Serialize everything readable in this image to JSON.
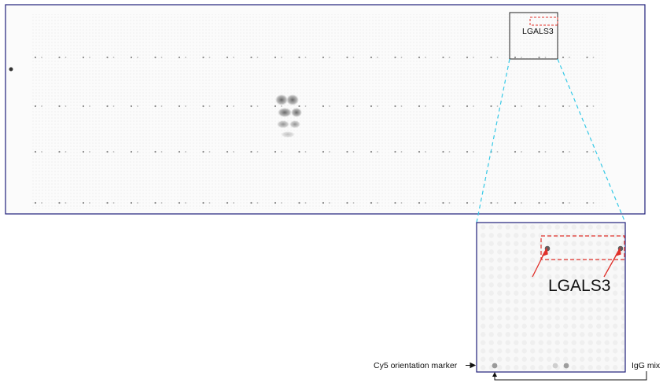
{
  "labels": {
    "overview_gene": "LGALS3",
    "zoom_gene": "LGALS3",
    "cy5_marker": "Cy5 orientation marker",
    "igg_mix": "IgG mix"
  },
  "colors": {
    "frame": "#1f1f7a",
    "zoom_connector": "#36c9e6",
    "highlight": "#e0302a",
    "spot_light": "#dadada",
    "spot_dark": "#6a6a6a"
  },
  "icons": {
    "arrow": "arrow-icon"
  }
}
